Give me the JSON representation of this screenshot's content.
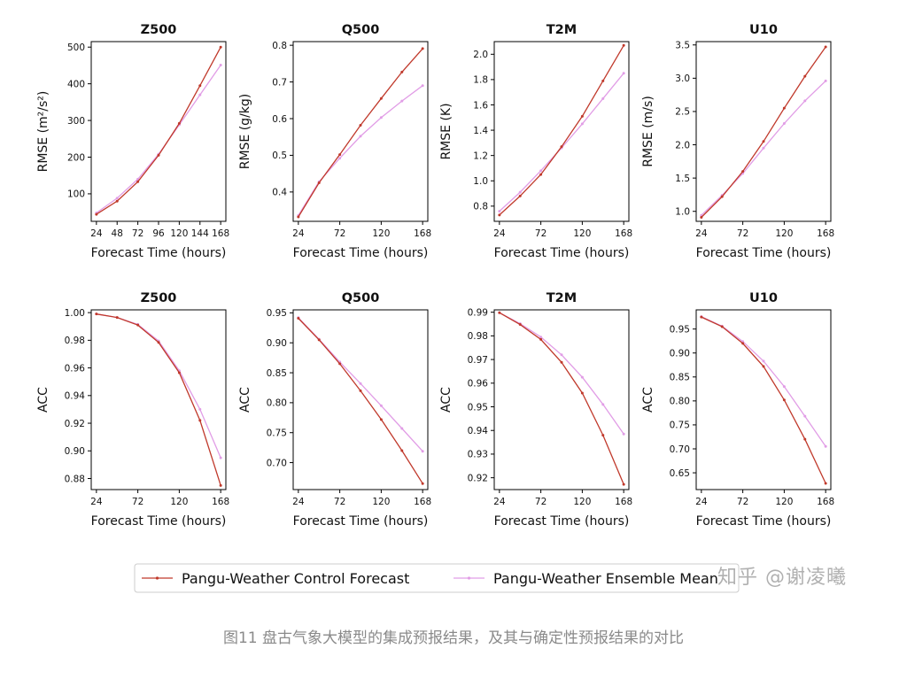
{
  "caption": "图11   盘古气象大模型的集成预报结果，及其与确定性预报结果的对比",
  "watermark": "知乎 @谢凌曦",
  "legend": {
    "control_label": "Pangu-Weather Control Forecast",
    "ensemble_label": "Pangu-Weather Ensemble Mean"
  },
  "colors": {
    "control": "#c0392b",
    "ensemble": "#e19de6",
    "axis": "#000000"
  },
  "chart_data": [
    {
      "type": "line",
      "title": "Z500",
      "xlabel": "Forecast Time (hours)",
      "ylabel": "RMSE (m²/s²)",
      "xlim": [
        18,
        174
      ],
      "ylim": [
        25,
        515
      ],
      "xticks": [
        24,
        48,
        72,
        96,
        120,
        144,
        168
      ],
      "yticks": [
        100,
        200,
        300,
        400,
        500
      ],
      "ytick_labels": [
        "100",
        "200",
        "300",
        "400",
        "500"
      ],
      "x": [
        24,
        48,
        72,
        96,
        120,
        144,
        168
      ],
      "series": [
        {
          "name": "Pangu-Weather Control Forecast",
          "values": [
            44,
            80,
            133,
            205,
            292,
            395,
            500
          ]
        },
        {
          "name": "Pangu-Weather Ensemble Mean",
          "values": [
            48,
            88,
            140,
            208,
            288,
            370,
            451
          ]
        }
      ]
    },
    {
      "type": "line",
      "title": "Q500",
      "xlabel": "Forecast Time (hours)",
      "ylabel": "RMSE (g/kg)",
      "xlim": [
        18,
        174
      ],
      "ylim": [
        0.32,
        0.81
      ],
      "xticks": [
        24,
        72,
        120,
        168
      ],
      "yticks": [
        0.4,
        0.5,
        0.6,
        0.7,
        0.8
      ],
      "ytick_labels": [
        "0.4",
        "0.5",
        "0.6",
        "0.7",
        "0.8"
      ],
      "x": [
        24,
        48,
        72,
        96,
        120,
        144,
        168
      ],
      "series": [
        {
          "name": "Pangu-Weather Control Forecast",
          "values": [
            0.332,
            0.425,
            0.502,
            0.582,
            0.655,
            0.727,
            0.791
          ]
        },
        {
          "name": "Pangu-Weather Ensemble Mean",
          "values": [
            0.336,
            0.428,
            0.492,
            0.552,
            0.603,
            0.648,
            0.69
          ]
        }
      ]
    },
    {
      "type": "line",
      "title": "T2M",
      "xlabel": "Forecast Time (hours)",
      "ylabel": "RMSE (K)",
      "xlim": [
        18,
        174
      ],
      "ylim": [
        0.68,
        2.1
      ],
      "xticks": [
        24,
        72,
        120,
        168
      ],
      "yticks": [
        0.8,
        1.0,
        1.2,
        1.4,
        1.6,
        1.8,
        2.0
      ],
      "ytick_labels": [
        "0.8",
        "1.0",
        "1.2",
        "1.4",
        "1.6",
        "1.8",
        "2.0"
      ],
      "x": [
        24,
        48,
        72,
        96,
        120,
        144,
        168
      ],
      "series": [
        {
          "name": "Pangu-Weather Control Forecast",
          "values": [
            0.73,
            0.88,
            1.05,
            1.27,
            1.51,
            1.79,
            2.07
          ]
        },
        {
          "name": "Pangu-Weather Ensemble Mean",
          "values": [
            0.76,
            0.91,
            1.08,
            1.26,
            1.45,
            1.65,
            1.85
          ]
        }
      ]
    },
    {
      "type": "line",
      "title": "U10",
      "xlabel": "Forecast Time (hours)",
      "ylabel": "RMSE (m/s)",
      "xlim": [
        18,
        174
      ],
      "ylim": [
        0.85,
        3.55
      ],
      "xticks": [
        24,
        72,
        120,
        168
      ],
      "yticks": [
        1.0,
        1.5,
        2.0,
        2.5,
        3.0,
        3.5
      ],
      "ytick_labels": [
        "1.0",
        "1.5",
        "2.0",
        "2.5",
        "3.0",
        "3.5"
      ],
      "x": [
        24,
        48,
        72,
        96,
        120,
        144,
        168
      ],
      "series": [
        {
          "name": "Pangu-Weather Control Forecast",
          "values": [
            0.91,
            1.22,
            1.6,
            2.05,
            2.55,
            3.03,
            3.47
          ]
        },
        {
          "name": "Pangu-Weather Ensemble Mean",
          "values": [
            0.94,
            1.24,
            1.57,
            1.95,
            2.32,
            2.66,
            2.96
          ]
        }
      ]
    },
    {
      "type": "line",
      "title": "Z500",
      "xlabel": "Forecast Time (hours)",
      "ylabel": "ACC",
      "xlim": [
        18,
        174
      ],
      "ylim": [
        0.872,
        1.002
      ],
      "xticks": [
        24,
        72,
        120,
        168
      ],
      "yticks": [
        0.88,
        0.9,
        0.92,
        0.94,
        0.96,
        0.98,
        1.0
      ],
      "ytick_labels": [
        "0.88",
        "0.90",
        "0.92",
        "0.94",
        "0.96",
        "0.98",
        "1.00"
      ],
      "x": [
        24,
        48,
        72,
        96,
        120,
        144,
        168
      ],
      "series": [
        {
          "name": "Pangu-Weather Control Forecast",
          "values": [
            0.999,
            0.9965,
            0.991,
            0.9785,
            0.9565,
            0.922,
            0.875
          ]
        },
        {
          "name": "Pangu-Weather Ensemble Mean",
          "values": [
            0.999,
            0.9965,
            0.9915,
            0.9795,
            0.958,
            0.93,
            0.895
          ]
        }
      ]
    },
    {
      "type": "line",
      "title": "Q500",
      "xlabel": "Forecast Time (hours)",
      "ylabel": "ACC",
      "xlim": [
        18,
        174
      ],
      "ylim": [
        0.655,
        0.955
      ],
      "xticks": [
        24,
        72,
        120,
        168
      ],
      "yticks": [
        0.7,
        0.75,
        0.8,
        0.85,
        0.9,
        0.95
      ],
      "ytick_labels": [
        "0.70",
        "0.75",
        "0.80",
        "0.85",
        "0.90",
        "0.95"
      ],
      "x": [
        24,
        48,
        72,
        96,
        120,
        144,
        168
      ],
      "series": [
        {
          "name": "Pangu-Weather Control Forecast",
          "values": [
            0.941,
            0.905,
            0.865,
            0.82,
            0.772,
            0.72,
            0.665
          ]
        },
        {
          "name": "Pangu-Weather Ensemble Mean",
          "values": [
            0.942,
            0.906,
            0.868,
            0.832,
            0.795,
            0.757,
            0.719
          ]
        }
      ]
    },
    {
      "type": "line",
      "title": "T2M",
      "xlabel": "Forecast Time (hours)",
      "ylabel": "ACC",
      "xlim": [
        18,
        174
      ],
      "ylim": [
        0.915,
        0.991
      ],
      "xticks": [
        24,
        72,
        120,
        168
      ],
      "yticks": [
        0.92,
        0.93,
        0.94,
        0.95,
        0.96,
        0.97,
        0.98,
        0.99
      ],
      "ytick_labels": [
        "0.92",
        "0.93",
        "0.94",
        "0.95",
        "0.96",
        "0.97",
        "0.98",
        "0.99"
      ],
      "x": [
        24,
        48,
        72,
        96,
        120,
        144,
        168
      ],
      "series": [
        {
          "name": "Pangu-Weather Control Forecast",
          "values": [
            0.9898,
            0.9848,
            0.9785,
            0.9688,
            0.9558,
            0.938,
            0.9172
          ]
        },
        {
          "name": "Pangu-Weather Ensemble Mean",
          "values": [
            0.9898,
            0.9852,
            0.9795,
            0.972,
            0.9625,
            0.951,
            0.9385
          ]
        }
      ]
    },
    {
      "type": "line",
      "title": "U10",
      "xlabel": "Forecast Time (hours)",
      "ylabel": "ACC",
      "xlim": [
        18,
        174
      ],
      "ylim": [
        0.615,
        0.99
      ],
      "xticks": [
        24,
        72,
        120,
        168
      ],
      "yticks": [
        0.65,
        0.7,
        0.75,
        0.8,
        0.85,
        0.9,
        0.95
      ],
      "ytick_labels": [
        "0.65",
        "0.70",
        "0.75",
        "0.80",
        "0.85",
        "0.90",
        "0.95"
      ],
      "x": [
        24,
        48,
        72,
        96,
        120,
        144,
        168
      ],
      "series": [
        {
          "name": "Pangu-Weather Control Forecast",
          "values": [
            0.975,
            0.955,
            0.92,
            0.872,
            0.802,
            0.72,
            0.628
          ]
        },
        {
          "name": "Pangu-Weather Ensemble Mean",
          "values": [
            0.976,
            0.956,
            0.924,
            0.883,
            0.83,
            0.768,
            0.705
          ]
        }
      ]
    }
  ]
}
